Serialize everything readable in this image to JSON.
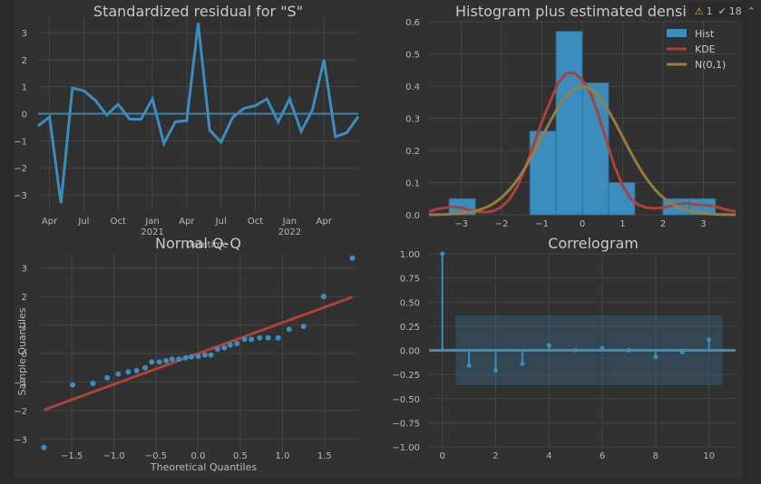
{
  "status": {
    "warnings_icon": "warning-triangle-icon",
    "warnings": "1",
    "checks_icon": "check-icon",
    "checks": "18",
    "chevron_icon": "chevron-up-icon"
  },
  "chart_data": [
    {
      "type": "line",
      "title": "Standardized residual for \"S\"",
      "xlabel": "",
      "ylabel": "",
      "ylim": [
        -3.6,
        3.6
      ],
      "x_ticks": [
        "Apr",
        "Jul",
        "Oct",
        "Jan\n2021",
        "Apr",
        "Jul",
        "Oct",
        "Jan\n2022",
        "Apr"
      ],
      "y_ticks": [
        -3,
        -2,
        -1,
        0,
        1,
        2,
        3
      ],
      "overlapping_text": "Datetime",
      "series": [
        {
          "values": [
            -0.45,
            -0.12,
            -3.3,
            0.95,
            0.85,
            0.5,
            -0.05,
            0.35,
            -0.2,
            -0.2,
            0.55,
            -1.1,
            -0.3,
            -0.25,
            3.35,
            -0.6,
            -1.05,
            -0.15,
            0.2,
            0.3,
            0.55,
            -0.3,
            0.55,
            -0.65,
            0.15,
            2.0,
            -0.85,
            -0.7,
            -0.1
          ]
        }
      ],
      "grid": true,
      "color": "#3b8dbd"
    },
    {
      "type": "bar",
      "title": "Histogram plus estimated densi",
      "xlim": [
        -3.8,
        3.8
      ],
      "ylim": [
        0,
        0.6
      ],
      "x_ticks": [
        -3,
        -2,
        -1,
        0,
        1,
        2,
        3
      ],
      "y_ticks": [
        0.0,
        0.1,
        0.2,
        0.3,
        0.4,
        0.5,
        0.6
      ],
      "bins": [
        {
          "x0": -3.3,
          "x1": -2.65,
          "value": 0.05
        },
        {
          "x0": -2.65,
          "x1": -1.3,
          "value": 0
        },
        {
          "x0": -1.3,
          "x1": -0.65,
          "value": 0.26
        },
        {
          "x0": -0.65,
          "x1": 0.0,
          "value": 0.57
        },
        {
          "x0": 0.0,
          "x1": 0.65,
          "value": 0.41
        },
        {
          "x0": 0.65,
          "x1": 1.3,
          "value": 0.1
        },
        {
          "x0": 1.3,
          "x1": 2.0,
          "value": 0
        },
        {
          "x0": 2.0,
          "x1": 2.65,
          "value": 0.05
        },
        {
          "x0": 2.65,
          "x1": 3.3,
          "value": 0.05
        }
      ],
      "kde": {
        "x": [
          -3.8,
          -3.6,
          -3.4,
          -3.2,
          -3.0,
          -2.8,
          -2.6,
          -2.4,
          -2.2,
          -2.0,
          -1.8,
          -1.6,
          -1.4,
          -1.2,
          -1.0,
          -0.8,
          -0.6,
          -0.4,
          -0.2,
          0.0,
          0.2,
          0.4,
          0.6,
          0.8,
          1.0,
          1.2,
          1.4,
          1.6,
          1.8,
          2.0,
          2.2,
          2.4,
          2.6,
          2.8,
          3.0,
          3.2,
          3.4,
          3.6,
          3.8
        ],
        "y": [
          0.01,
          0.018,
          0.022,
          0.025,
          0.022,
          0.015,
          0.01,
          0.008,
          0.012,
          0.025,
          0.05,
          0.09,
          0.15,
          0.22,
          0.29,
          0.35,
          0.41,
          0.44,
          0.44,
          0.42,
          0.38,
          0.31,
          0.23,
          0.15,
          0.09,
          0.05,
          0.03,
          0.022,
          0.02,
          0.022,
          0.028,
          0.034,
          0.036,
          0.032,
          0.03,
          0.028,
          0.022,
          0.015,
          0.01
        ]
      },
      "legend": [
        "Hist",
        "KDE",
        "N(0,1)"
      ],
      "legend_position": "top-right",
      "colors": {
        "hist": "#3b8dbd",
        "kde": "#b0413a",
        "norm": "#9a8040"
      },
      "grid": true
    },
    {
      "type": "scatter",
      "title": "Normal Q-Q",
      "xlabel": "Theoretical Quantiles",
      "ylabel": "Sample Quantiles",
      "xlim": [
        -1.9,
        1.9
      ],
      "ylim": [
        -3.5,
        3.5
      ],
      "x_ticks": [
        -1.5,
        -1.0,
        -0.5,
        0.0,
        0.5,
        1.0,
        1.5
      ],
      "y_ticks": [
        -3,
        -2,
        -1,
        0,
        1,
        2,
        3
      ],
      "points": {
        "x": [
          -1.83,
          -1.49,
          -1.25,
          -1.08,
          -0.95,
          -0.83,
          -0.73,
          -0.63,
          -0.55,
          -0.46,
          -0.38,
          -0.31,
          -0.23,
          -0.15,
          -0.08,
          0.0,
          0.08,
          0.15,
          0.23,
          0.31,
          0.38,
          0.46,
          0.55,
          0.63,
          0.73,
          0.83,
          0.95,
          1.08,
          1.25,
          1.49,
          1.83
        ],
        "y": [
          -3.3,
          -1.1,
          -1.05,
          -0.85,
          -0.72,
          -0.65,
          -0.6,
          -0.5,
          -0.3,
          -0.3,
          -0.25,
          -0.2,
          -0.2,
          -0.15,
          -0.12,
          -0.1,
          -0.05,
          -0.05,
          0.15,
          0.2,
          0.3,
          0.35,
          0.5,
          0.5,
          0.55,
          0.55,
          0.55,
          0.85,
          0.95,
          2.0,
          3.35
        ]
      },
      "reference_line": {
        "x": [
          -1.83,
          1.83
        ],
        "y": [
          -1.98,
          1.98
        ]
      },
      "colors": {
        "points": "#3b8dbd",
        "line": "#b0413a"
      },
      "grid": true
    },
    {
      "type": "bar",
      "title": "Correlogram",
      "xlim": [
        -0.5,
        11
      ],
      "ylim": [
        -1.0,
        1.0
      ],
      "x_ticks": [
        0,
        2,
        4,
        6,
        8,
        10
      ],
      "y_ticks": [
        -1.0,
        -0.75,
        -0.5,
        -0.25,
        0.0,
        0.25,
        0.5,
        0.75,
        1.0
      ],
      "lags": [
        0,
        1,
        2,
        3,
        4,
        5,
        6,
        7,
        8,
        9,
        10
      ],
      "acf": [
        1.0,
        -0.16,
        -0.21,
        -0.14,
        0.05,
        0.0,
        0.02,
        0.0,
        -0.07,
        -0.02,
        0.11
      ],
      "confidence_band": [
        -0.36,
        0.36
      ],
      "colors": {
        "stems": "#3b8dbd",
        "band": "#3b8dbd"
      },
      "grid": true
    }
  ]
}
